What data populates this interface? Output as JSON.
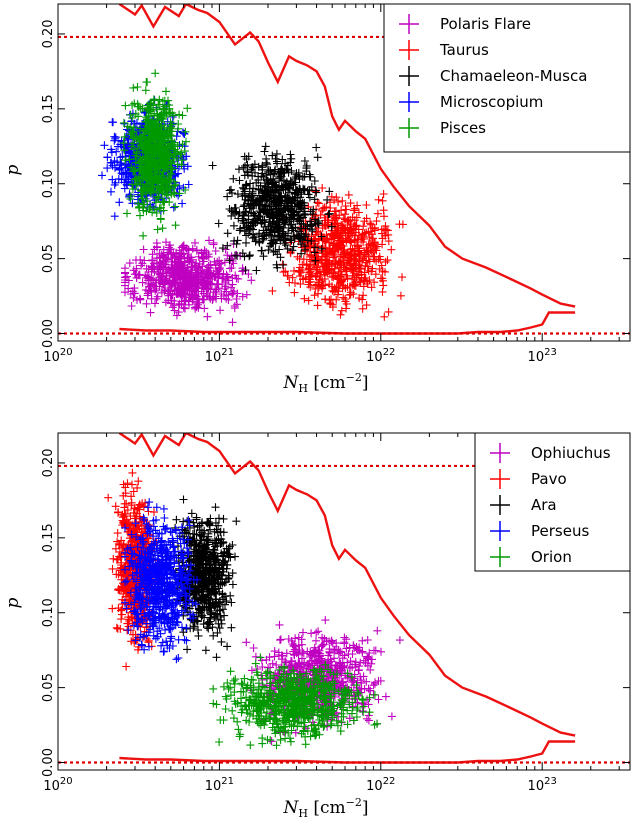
{
  "chart_data": [
    {
      "type": "scatter",
      "xlabel": "N_H [cm^-2]",
      "ylabel": "p",
      "xscale": "log",
      "xlim": [
        1e+20,
        3.5e+23
      ],
      "ylim": [
        -0.005,
        0.22
      ],
      "x_ticks": [
        {
          "base": "10",
          "exp": "20"
        },
        {
          "base": "10",
          "exp": "21"
        },
        {
          "base": "10",
          "exp": "22"
        },
        {
          "base": "10",
          "exp": "23"
        }
      ],
      "y_ticks": [
        "0.00",
        "0.05",
        "0.10",
        "0.15",
        "0.20"
      ],
      "legend_position": "top-right",
      "reference_lines": [
        0.0,
        0.198
      ],
      "envelope_upper": {
        "x": [
          2.4e+20,
          3e+20,
          3.3e+20,
          3.9e+20,
          4.6e+20,
          5.6e+20,
          6.2e+20,
          7.4e+20,
          8.4e+20,
          1e+21,
          1.25e+21,
          1.55e+21,
          1.75e+21,
          2e+21,
          2.3e+21,
          2.7e+21,
          3e+21,
          3.5e+21,
          4e+21,
          4.5e+21,
          5e+21,
          5.5e+21,
          6e+21,
          7e+21,
          8e+21,
          1e+22,
          1.2e+22,
          1.5e+22,
          2e+22,
          2.5e+22,
          3.2e+22,
          4.5e+22,
          6.5e+22,
          8.5e+22,
          1e+23,
          1.3e+23,
          1.6e+23
        ],
        "y": [
          0.22,
          0.213,
          0.219,
          0.205,
          0.218,
          0.212,
          0.22,
          0.216,
          0.214,
          0.208,
          0.193,
          0.201,
          0.195,
          0.181,
          0.168,
          0.185,
          0.182,
          0.179,
          0.175,
          0.165,
          0.145,
          0.136,
          0.142,
          0.135,
          0.13,
          0.11,
          0.098,
          0.085,
          0.072,
          0.058,
          0.05,
          0.044,
          0.036,
          0.03,
          0.026,
          0.02,
          0.018
        ]
      },
      "envelope_lower": {
        "x": [
          2.4e+20,
          3.5e+20,
          5e+20,
          8e+20,
          1.5e+21,
          3e+21,
          6e+21,
          1.2e+22,
          2e+22,
          3e+22,
          4e+22,
          5.5e+22,
          7e+22,
          8.5e+22,
          1e+23,
          1.1e+23,
          1.3e+23,
          1.6e+23
        ],
        "y": [
          0.003,
          0.002,
          0.002,
          0.001,
          0.001,
          0.001,
          0.0,
          0.0,
          0.0,
          0.0,
          0.001,
          0.001,
          0.002,
          0.004,
          0.006,
          0.014,
          0.014,
          0.014
        ]
      },
      "series": [
        {
          "name": "Polaris Flare",
          "color": "#c000c0",
          "region": {
            "x": [
              2.6e+20,
              5e+21
            ],
            "y": [
              0.003,
              0.082
            ],
            "center": [
              6e+20,
              0.038
            ]
          }
        },
        {
          "name": "Taurus",
          "color": "#ff0000",
          "region": {
            "x": [
              1.2e+21,
              1.9e+22
            ],
            "y": [
              0.0,
              0.135
            ],
            "center": [
              5.5e+21,
              0.055
            ]
          }
        },
        {
          "name": "Chamaeleon-Musca",
          "color": "#000000",
          "region": {
            "x": [
              8e+20,
              9e+21
            ],
            "y": [
              0.02,
              0.152
            ],
            "center": [
              2.2e+21,
              0.085
            ]
          }
        },
        {
          "name": "Microscopium",
          "color": "#0000ff",
          "region": {
            "x": [
              1.6e+20,
              1.1e+21
            ],
            "y": [
              0.06,
              0.17
            ],
            "center": [
              3.6e+20,
              0.115
            ]
          }
        },
        {
          "name": "Pisces",
          "color": "#009900",
          "region": {
            "x": [
              1.8e+20,
              7e+20
            ],
            "y": [
              0.055,
              0.21
            ],
            "center": [
              4e+20,
              0.12
            ]
          }
        }
      ]
    },
    {
      "type": "scatter",
      "xlabel": "N_H [cm^-2]",
      "ylabel": "p",
      "xscale": "log",
      "xlim": [
        1e+20,
        3.5e+23
      ],
      "ylim": [
        -0.005,
        0.22
      ],
      "x_ticks": [
        {
          "base": "10",
          "exp": "20"
        },
        {
          "base": "10",
          "exp": "21"
        },
        {
          "base": "10",
          "exp": "22"
        },
        {
          "base": "10",
          "exp": "23"
        }
      ],
      "y_ticks": [
        "0.00",
        "0.05",
        "0.10",
        "0.15",
        "0.20"
      ],
      "legend_position": "top-right",
      "reference_lines": [
        0.0,
        0.198
      ],
      "envelope_upper": {
        "x": [
          2.4e+20,
          3e+20,
          3.3e+20,
          3.9e+20,
          4.6e+20,
          5.6e+20,
          6.2e+20,
          7.4e+20,
          8.4e+20,
          1e+21,
          1.25e+21,
          1.55e+21,
          1.75e+21,
          2e+21,
          2.3e+21,
          2.7e+21,
          3e+21,
          3.5e+21,
          4e+21,
          4.5e+21,
          5e+21,
          5.5e+21,
          6e+21,
          7e+21,
          8e+21,
          1e+22,
          1.2e+22,
          1.5e+22,
          2e+22,
          2.5e+22,
          3.2e+22,
          4.5e+22,
          6.5e+22,
          8.5e+22,
          1e+23,
          1.3e+23,
          1.6e+23
        ],
        "y": [
          0.22,
          0.213,
          0.219,
          0.205,
          0.218,
          0.212,
          0.22,
          0.216,
          0.214,
          0.208,
          0.193,
          0.201,
          0.195,
          0.181,
          0.168,
          0.185,
          0.182,
          0.179,
          0.175,
          0.165,
          0.145,
          0.136,
          0.142,
          0.135,
          0.13,
          0.11,
          0.098,
          0.085,
          0.072,
          0.058,
          0.05,
          0.044,
          0.036,
          0.03,
          0.026,
          0.02,
          0.018
        ]
      },
      "envelope_lower": {
        "x": [
          2.4e+20,
          3.5e+20,
          5e+20,
          8e+20,
          1.5e+21,
          3e+21,
          6e+21,
          1.2e+22,
          2e+22,
          3e+22,
          4e+22,
          5.5e+22,
          7e+22,
          8.5e+22,
          1e+23,
          1.1e+23,
          1.3e+23,
          1.6e+23
        ],
        "y": [
          0.003,
          0.002,
          0.002,
          0.001,
          0.001,
          0.001,
          0.0,
          0.0,
          0.0,
          0.0,
          0.001,
          0.001,
          0.002,
          0.004,
          0.006,
          0.014,
          0.014,
          0.014
        ]
      },
      "series": [
        {
          "name": "Ophiuchus",
          "color": "#c000c0",
          "region": {
            "x": [
              7e+20,
              1.8e+22
            ],
            "y": [
              0.008,
              0.12
            ],
            "center": [
              4e+21,
              0.055
            ]
          }
        },
        {
          "name": "Pavo",
          "color": "#ff0000",
          "region": {
            "x": [
              2e+20,
              5.5e+20
            ],
            "y": [
              0.04,
              0.22
            ],
            "center": [
              3e+20,
              0.13
            ]
          }
        },
        {
          "name": "Ara",
          "color": "#000000",
          "region": {
            "x": [
              4.5e+20,
              2e+21
            ],
            "y": [
              0.07,
              0.21
            ],
            "center": [
              8e+20,
              0.125
            ]
          }
        },
        {
          "name": "Perseus",
          "color": "#0000ff",
          "region": {
            "x": [
              2.6e+20,
              1.4e+21
            ],
            "y": [
              0.05,
              0.21
            ],
            "center": [
              4.2e+20,
              0.12
            ]
          }
        },
        {
          "name": "Orion",
          "color": "#009900",
          "region": {
            "x": [
              6e+20,
              1.9e+22
            ],
            "y": [
              0.004,
              0.09
            ],
            "center": [
              3e+21,
              0.04
            ]
          }
        }
      ]
    }
  ]
}
